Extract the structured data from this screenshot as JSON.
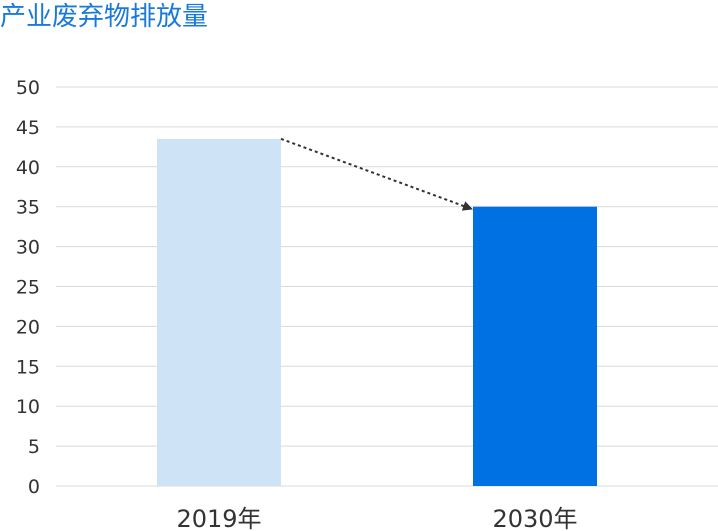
{
  "title": "产业废弃物排放量",
  "colors": {
    "title": "#1a7ad9",
    "grid": "#d9d9d9",
    "text": "#333333",
    "arrow": "#333333"
  },
  "chart_data": {
    "type": "bar",
    "title": "产业废弃物排放量",
    "categories": [
      "2019年",
      "2030年"
    ],
    "values": [
      43.5,
      35
    ],
    "bar_colors": [
      "#cfe3f7",
      "#0071e3"
    ],
    "xlabel": "",
    "ylabel": "",
    "ylim": [
      0,
      50
    ],
    "yticks": [
      0,
      5,
      10,
      15,
      20,
      25,
      30,
      35,
      40,
      45,
      50
    ],
    "grid": true,
    "legend": "none",
    "annotation": "dotted arrow from 2019 bar top to 2030 bar top"
  }
}
